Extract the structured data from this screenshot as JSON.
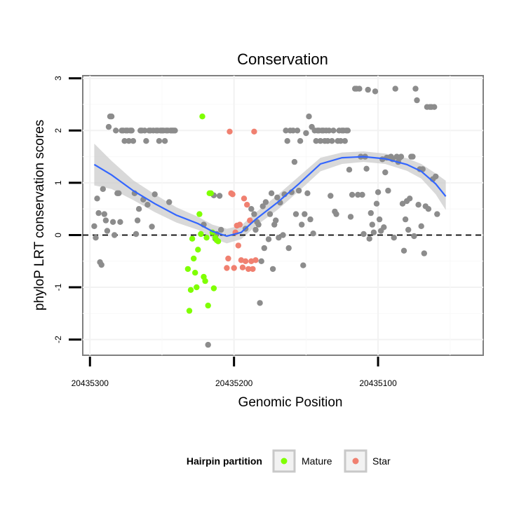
{
  "chart_data": {
    "type": "scatter",
    "title": "Conservation",
    "xlabel": "Genomic Position",
    "ylabel": "phyloP LRT conservation scores",
    "xlim": [
      20435305,
      20435027
    ],
    "ylim": [
      -2.3,
      3.05
    ],
    "x_reversed": true,
    "x_ticks": [
      20435300,
      20435200,
      20435100
    ],
    "x_tick_labels": [
      "20435300",
      "20435200",
      "20435100"
    ],
    "y_ticks": [
      -2,
      -1,
      0,
      1,
      2,
      3
    ],
    "y_tick_labels": [
      "-2",
      "-1",
      "0",
      "1",
      "2",
      "3"
    ],
    "reference_line": {
      "y": 0,
      "style": "dashed"
    },
    "grid": true,
    "legend": {
      "title": "Hairpin partition",
      "position": "bottom",
      "items": [
        {
          "label": "Mature",
          "color": "#7fff00"
        },
        {
          "label": "Star",
          "color": "#f08070"
        }
      ]
    },
    "colors": {
      "other": "#8c8c8c",
      "mature": "#7fff00",
      "star": "#f08070",
      "smooth_line": "#3366ff",
      "smooth_band": "#cccccc"
    },
    "series": [
      {
        "group": "other",
        "points": [
          [
            20435297,
            0.17
          ],
          [
            20435296,
            -0.05
          ],
          [
            20435295,
            0.7
          ],
          [
            20435294,
            0.42
          ],
          [
            20435293,
            -0.52
          ],
          [
            20435292,
            -0.57
          ],
          [
            20435291,
            0.88
          ],
          [
            20435290,
            0.4
          ],
          [
            20435289,
            0.28
          ],
          [
            20435288,
            0.08
          ],
          [
            20435287,
            2.07
          ],
          [
            20435286,
            2.27
          ],
          [
            20435285,
            2.27
          ],
          [
            20435284,
            0.25
          ],
          [
            20435283,
            0.0
          ],
          [
            20435282,
            2.0
          ],
          [
            20435281,
            0.8
          ],
          [
            20435280,
            0.8
          ],
          [
            20435279,
            0.25
          ],
          [
            20435278,
            2.0
          ],
          [
            20435277,
            2.0
          ],
          [
            20435276,
            1.8
          ],
          [
            20435275,
            2.0
          ],
          [
            20435274,
            2.0
          ],
          [
            20435273,
            1.8
          ],
          [
            20435272,
            2.0
          ],
          [
            20435271,
            2.0
          ],
          [
            20435270,
            1.8
          ],
          [
            20435269,
            0.8
          ],
          [
            20435268,
            0.02
          ],
          [
            20435267,
            0.28
          ],
          [
            20435266,
            0.5
          ],
          [
            20435265,
            2.0
          ],
          [
            20435264,
            2.0
          ],
          [
            20435263,
            0.68
          ],
          [
            20435262,
            2.0
          ],
          [
            20435261,
            1.8
          ],
          [
            20435260,
            0.58
          ],
          [
            20435259,
            2.0
          ],
          [
            20435258,
            2.0
          ],
          [
            20435257,
            0.16
          ],
          [
            20435256,
            2.0
          ],
          [
            20435255,
            0.78
          ],
          [
            20435254,
            2.0
          ],
          [
            20435253,
            2.0
          ],
          [
            20435252,
            1.8
          ],
          [
            20435251,
            2.0
          ],
          [
            20435250,
            2.0
          ],
          [
            20435249,
            2.0
          ],
          [
            20435248,
            1.8
          ],
          [
            20435247,
            2.0
          ],
          [
            20435246,
            2.0
          ],
          [
            20435245,
            0.63
          ],
          [
            20435244,
            2.0
          ],
          [
            20435243,
            2.0
          ],
          [
            20435242,
            2.0
          ],
          [
            20435241,
            2.0
          ],
          [
            20435210,
            0.75
          ],
          [
            20435209,
            0.1
          ],
          [
            20435221,
            0.2
          ],
          [
            20435218,
            -2.1
          ],
          [
            20435214,
            0.76
          ],
          [
            20435212,
            0.02
          ],
          [
            20435213,
            -0.07
          ],
          [
            20435192,
            0.12
          ],
          [
            20435188,
            0.5
          ],
          [
            20435186,
            0.4
          ],
          [
            20435185,
            0.1
          ],
          [
            20435184,
            0.25
          ],
          [
            20435183,
            0.2
          ],
          [
            20435182,
            -1.3
          ],
          [
            20435181,
            -0.5
          ],
          [
            20435180,
            0.55
          ],
          [
            20435179,
            -0.25
          ],
          [
            20435178,
            0.63
          ],
          [
            20435176,
            -0.08
          ],
          [
            20435175,
            0.4
          ],
          [
            20435174,
            0.8
          ],
          [
            20435173,
            -0.65
          ],
          [
            20435172,
            0.2
          ],
          [
            20435171,
            0.28
          ],
          [
            20435170,
            0.72
          ],
          [
            20435169,
            -0.05
          ],
          [
            20435168,
            0.62
          ],
          [
            20435166,
            0.0
          ],
          [
            20435165,
            0.78
          ],
          [
            20435164,
            2.0
          ],
          [
            20435163,
            1.8
          ],
          [
            20435162,
            -0.25
          ],
          [
            20435161,
            2.0
          ],
          [
            20435160,
            0.82
          ],
          [
            20435159,
            2.0
          ],
          [
            20435158,
            1.4
          ],
          [
            20435157,
            0.4
          ],
          [
            20435156,
            2.0
          ],
          [
            20435155,
            0.85
          ],
          [
            20435154,
            1.8
          ],
          [
            20435153,
            0.2
          ],
          [
            20435152,
            -0.58
          ],
          [
            20435151,
            0.4
          ],
          [
            20435150,
            1.95
          ],
          [
            20435149,
            0.8
          ],
          [
            20435148,
            2.27
          ],
          [
            20435147,
            0.3
          ],
          [
            20435146,
            2.07
          ],
          [
            20435145,
            0.03
          ],
          [
            20435144,
            2.0
          ],
          [
            20435143,
            1.8
          ],
          [
            20435142,
            2.0
          ],
          [
            20435141,
            2.0
          ],
          [
            20435140,
            1.8
          ],
          [
            20435139,
            2.0
          ],
          [
            20435138,
            2.0
          ],
          [
            20435137,
            1.8
          ],
          [
            20435136,
            2.0
          ],
          [
            20435135,
            1.8
          ],
          [
            20435134,
            2.0
          ],
          [
            20435133,
            0.75
          ],
          [
            20435132,
            1.8
          ],
          [
            20435131,
            2.0
          ],
          [
            20435130,
            0.45
          ],
          [
            20435129,
            0.4
          ],
          [
            20435128,
            1.8
          ],
          [
            20435127,
            2.0
          ],
          [
            20435126,
            1.8
          ],
          [
            20435125,
            2.0
          ],
          [
            20435124,
            2.0
          ],
          [
            20435123,
            1.8
          ],
          [
            20435122,
            2.0
          ],
          [
            20435121,
            2.0
          ],
          [
            20435120,
            1.25
          ],
          [
            20435119,
            0.35
          ],
          [
            20435118,
            0.77
          ],
          [
            20435116,
            2.8
          ],
          [
            20435115,
            2.8
          ],
          [
            20435114,
            0.77
          ],
          [
            20435113,
            2.8
          ],
          [
            20435112,
            1.5
          ],
          [
            20435111,
            0.77
          ],
          [
            20435110,
            0.02
          ],
          [
            20435109,
            1.5
          ],
          [
            20435108,
            1.27
          ],
          [
            20435107,
            2.78
          ],
          [
            20435106,
            -0.07
          ],
          [
            20435105,
            0.42
          ],
          [
            20435104,
            0.2
          ],
          [
            20435103,
            0.05
          ],
          [
            20435102,
            2.75
          ],
          [
            20435101,
            0.6
          ],
          [
            20435100,
            0.82
          ],
          [
            20435099,
            0.3
          ],
          [
            20435098,
            0.08
          ],
          [
            20435097,
            1.45
          ],
          [
            20435096,
            0.15
          ],
          [
            20435095,
            1.2
          ],
          [
            20435094,
            1.48
          ],
          [
            20435093,
            0.85
          ],
          [
            20435092,
            1.48
          ],
          [
            20435091,
            1.5
          ],
          [
            20435090,
            1.45
          ],
          [
            20435089,
            -0.05
          ],
          [
            20435088,
            2.8
          ],
          [
            20435087,
            1.5
          ],
          [
            20435086,
            1.4
          ],
          [
            20435085,
            1.48
          ],
          [
            20435084,
            1.5
          ],
          [
            20435083,
            0.6
          ],
          [
            20435082,
            -0.3
          ],
          [
            20435081,
            0.3
          ],
          [
            20435080,
            0.65
          ],
          [
            20435079,
            0.1
          ],
          [
            20435078,
            0.7
          ],
          [
            20435077,
            1.5
          ],
          [
            20435076,
            1.5
          ],
          [
            20435075,
            -0.02
          ],
          [
            20435074,
            2.8
          ],
          [
            20435073,
            2.58
          ],
          [
            20435072,
            0.58
          ],
          [
            20435071,
            1.26
          ],
          [
            20435070,
            0.17
          ],
          [
            20435069,
            1.26
          ],
          [
            20435068,
            -0.35
          ],
          [
            20435067,
            0.55
          ],
          [
            20435066,
            2.45
          ],
          [
            20435065,
            0.5
          ],
          [
            20435064,
            2.45
          ],
          [
            20435063,
            2.45
          ],
          [
            20435062,
            1.07
          ],
          [
            20435061,
            2.45
          ],
          [
            20435060,
            1.12
          ],
          [
            20435059,
            0.4
          ]
        ]
      },
      {
        "name": "Mature",
        "group": "mature",
        "points": [
          [
            20435232,
            -0.65
          ],
          [
            20435231,
            -1.45
          ],
          [
            20435230,
            -1.05
          ],
          [
            20435229,
            -0.07
          ],
          [
            20435228,
            -0.45
          ],
          [
            20435227,
            -0.72
          ],
          [
            20435226,
            -1.0
          ],
          [
            20435225,
            -0.28
          ],
          [
            20435224,
            0.4
          ],
          [
            20435223,
            0.02
          ],
          [
            20435222,
            2.27
          ],
          [
            20435221,
            -0.8
          ],
          [
            20435220,
            -0.88
          ],
          [
            20435219,
            -0.05
          ],
          [
            20435218,
            -1.35
          ],
          [
            20435217,
            0.8
          ],
          [
            20435216,
            0.8
          ],
          [
            20435215,
            0.05
          ],
          [
            20435214,
            -1.02
          ],
          [
            20435213,
            -0.05
          ],
          [
            20435212,
            -0.1
          ],
          [
            20435211,
            -0.12
          ]
        ]
      },
      {
        "name": "Star",
        "group": "star",
        "points": [
          [
            20435205,
            -0.63
          ],
          [
            20435204,
            -0.45
          ],
          [
            20435203,
            1.98
          ],
          [
            20435202,
            0.8
          ],
          [
            20435201,
            0.78
          ],
          [
            20435200,
            -0.63
          ],
          [
            20435199,
            0.05
          ],
          [
            20435198,
            0.18
          ],
          [
            20435197,
            -0.2
          ],
          [
            20435196,
            0.2
          ],
          [
            20435195,
            -0.48
          ],
          [
            20435194,
            -0.62
          ],
          [
            20435193,
            0.7
          ],
          [
            20435192,
            -0.5
          ],
          [
            20435191,
            0.58
          ],
          [
            20435190,
            -0.65
          ],
          [
            20435189,
            0.28
          ],
          [
            20435188,
            -0.5
          ],
          [
            20435187,
            -0.65
          ],
          [
            20435186,
            1.98
          ],
          [
            20435185,
            -0.48
          ]
        ]
      }
    ],
    "smooth": [
      [
        20435297,
        1.35,
        1.75,
        0.95
      ],
      [
        20435285,
        1.15,
        1.42,
        0.88
      ],
      [
        20435270,
        0.85,
        1.05,
        0.67
      ],
      [
        20435255,
        0.6,
        0.78,
        0.44
      ],
      [
        20435240,
        0.38,
        0.53,
        0.24
      ],
      [
        20435225,
        0.22,
        0.35,
        0.1
      ],
      [
        20435215,
        0.07,
        0.2,
        -0.06
      ],
      [
        20435205,
        -0.02,
        0.12,
        -0.16
      ],
      [
        20435195,
        0.05,
        0.18,
        -0.08
      ],
      [
        20435185,
        0.3,
        0.43,
        0.17
      ],
      [
        20435170,
        0.62,
        0.76,
        0.48
      ],
      [
        20435155,
        0.98,
        1.12,
        0.84
      ],
      [
        20435140,
        1.36,
        1.48,
        1.22
      ],
      [
        20435125,
        1.48,
        1.58,
        1.36
      ],
      [
        20435110,
        1.5,
        1.6,
        1.4
      ],
      [
        20435095,
        1.46,
        1.56,
        1.36
      ],
      [
        20435080,
        1.35,
        1.47,
        1.23
      ],
      [
        20435070,
        1.22,
        1.36,
        1.08
      ],
      [
        20435060,
        0.98,
        1.18,
        0.78
      ],
      [
        20435053,
        0.74,
        1.04,
        0.48
      ]
    ]
  }
}
